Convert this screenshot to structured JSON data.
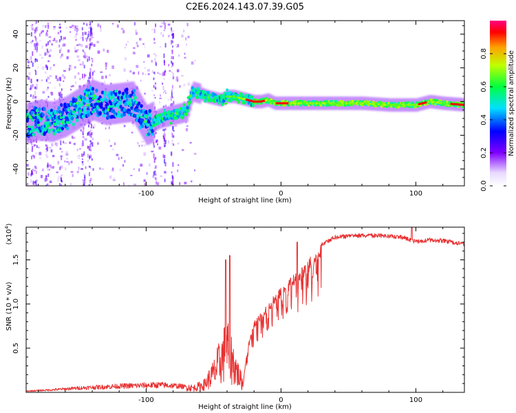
{
  "title": "C2E6.2024.143.07.39.G05",
  "chart_data": [
    {
      "type": "heatmap",
      "xlabel": "Height of straight line (km)",
      "ylabel": "Frequency (Hz)",
      "xlim": [
        -189,
        136
      ],
      "ylim": [
        -50,
        48
      ],
      "xticks": [
        -100,
        0,
        100
      ],
      "yticks": [
        -40,
        -20,
        0,
        20,
        40
      ],
      "colorbar": {
        "label": "Normalized spectral amplitude",
        "range": [
          0,
          1
        ],
        "ticks": [
          "0.0",
          "0.2",
          "0.4",
          "0.6",
          "0.8"
        ]
      },
      "ridge": {
        "x": [
          -189,
          -180,
          -170,
          -160,
          -150,
          -140,
          -130,
          -120,
          -110,
          -100,
          -95,
          -90,
          -85,
          -80,
          -75,
          -70,
          -66,
          -62,
          -58,
          -55,
          -50,
          -45,
          -40,
          -35,
          -30,
          -25,
          -20,
          -15,
          -10,
          -5,
          0,
          10,
          20,
          40,
          60,
          80,
          100,
          110,
          120,
          136
        ],
        "y": [
          -13,
          -11,
          -12,
          -9,
          -4,
          1,
          -2,
          -1,
          0,
          -14,
          -12,
          -10,
          -9,
          -8,
          -7,
          -6,
          6,
          5,
          4,
          3,
          2,
          1,
          3,
          3,
          2,
          1,
          0,
          0,
          1,
          -1,
          -1,
          -1,
          -1,
          -1,
          -1,
          -2,
          -2,
          0,
          -1,
          -2
        ]
      }
    },
    {
      "type": "line",
      "xlabel": "Height of straight line (km)",
      "ylabel": "SNR (10 * v/v)",
      "yunit": "(x10",
      "yexp": "4",
      "yunit_close": ")",
      "xlim": [
        -189,
        136
      ],
      "ylim": [
        0,
        1.87
      ],
      "xticks": [
        -100,
        0,
        100
      ],
      "yticks": [
        "0.5",
        "1.0",
        "1.5"
      ],
      "color": "#e83030",
      "envelope": {
        "x": [
          -189,
          -170,
          -150,
          -120,
          -90,
          -75,
          -65,
          -57,
          -50,
          -45,
          -40,
          -35,
          -31,
          -28,
          -25,
          -20,
          -15,
          -10,
          -5,
          0,
          10,
          20,
          30,
          40,
          55,
          70,
          90,
          100,
          110,
          120,
          136
        ],
        "y": [
          0.02,
          0.04,
          0.07,
          0.1,
          0.12,
          0.1,
          0.07,
          0.12,
          0.3,
          0.5,
          0.7,
          0.45,
          0.25,
          0.12,
          0.5,
          0.8,
          0.9,
          1.0,
          1.1,
          1.2,
          1.35,
          1.5,
          1.7,
          1.78,
          1.8,
          1.8,
          1.78,
          1.73,
          1.75,
          1.74,
          1.7
        ]
      }
    }
  ]
}
